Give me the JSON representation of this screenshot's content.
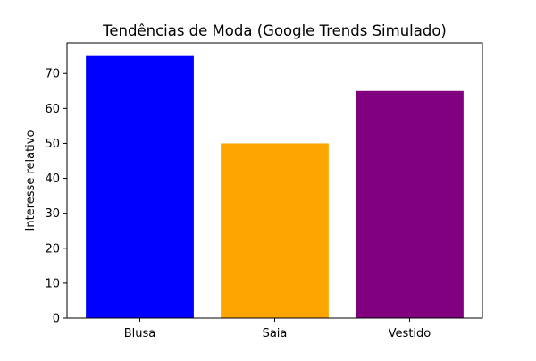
{
  "chart_data": {
    "type": "bar",
    "title": "Tendências de Moda (Google Trends Simulado)",
    "xlabel": "",
    "ylabel": "Interesse relativo",
    "categories": [
      "Blusa",
      "Saia",
      "Vestido"
    ],
    "values": [
      75,
      50,
      65
    ],
    "colors": [
      "#0000ff",
      "#ffa500",
      "#800080"
    ],
    "ylim": [
      0,
      78.75
    ],
    "yticks": [
      0,
      10,
      20,
      30,
      40,
      50,
      60,
      70
    ],
    "grid": false,
    "legend": "none"
  }
}
